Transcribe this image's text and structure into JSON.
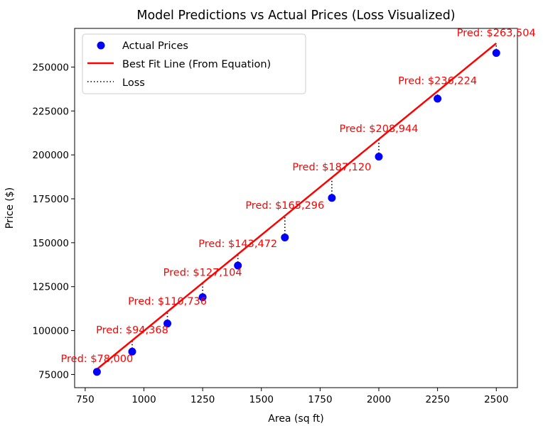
{
  "chart_data": {
    "type": "scatter",
    "title": "Model Predictions vs Actual Prices (Loss Visualized)",
    "xlabel": "Area (sq ft)",
    "ylabel": "Price ($)",
    "xlim": [
      705,
      2590
    ],
    "ylim": [
      67500,
      272000
    ],
    "x_ticks": [
      750,
      1000,
      1250,
      1500,
      1750,
      2000,
      2250,
      2500
    ],
    "y_ticks": [
      75000,
      100000,
      125000,
      150000,
      175000,
      200000,
      225000,
      250000
    ],
    "grid": false,
    "legend_position": "top-left",
    "series": [
      {
        "name": "Actual Prices",
        "type": "scatter",
        "color": "#0000ff",
        "x": [
          800,
          950,
          1100,
          1250,
          1400,
          1600,
          1800,
          2000,
          2250,
          2500
        ],
        "y": [
          76500,
          88000,
          104000,
          119000,
          137000,
          153000,
          175500,
          199000,
          232000,
          258000
        ]
      },
      {
        "name": "Best Fit Line (From Equation)",
        "type": "line",
        "color": "#ff0000",
        "x": [
          800,
          2500
        ],
        "y": [
          78000,
          263504
        ]
      },
      {
        "name": "Loss",
        "type": "line",
        "style": "dotted",
        "color": "#000000"
      }
    ],
    "predictions": {
      "x": [
        800,
        950,
        1100,
        1250,
        1400,
        1600,
        1800,
        2000,
        2250,
        2500
      ],
      "y": [
        78000,
        94368,
        110736,
        127104,
        143472,
        165296,
        187120,
        208944,
        236224,
        263504
      ],
      "labels": [
        "Pred: $78,000",
        "Pred: $94,368",
        "Pred: $110,736",
        "Pred: $127,104",
        "Pred: $143,472",
        "Pred: $165,296",
        "Pred: $187,120",
        "Pred: $208,944",
        "Pred: $236,224",
        "Pred: $263,504"
      ],
      "color": "#ff0000"
    }
  }
}
